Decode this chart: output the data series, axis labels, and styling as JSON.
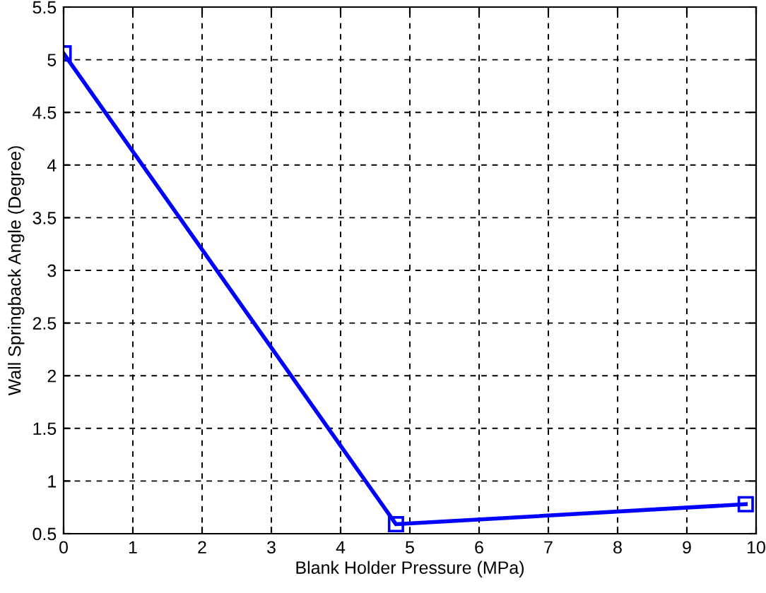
{
  "chart_data": {
    "type": "line",
    "xlabel": "Blank Holder Pressure (MPa)",
    "ylabel": "Wall Springback Angle (Degree)",
    "x": [
      0,
      4.8,
      9.85
    ],
    "series": [
      {
        "color": "#0000ff",
        "values": [
          5.06,
          0.59,
          0.78
        ]
      }
    ],
    "xlim": [
      0,
      10
    ],
    "xticks": [
      0,
      1,
      2,
      3,
      4,
      5,
      6,
      7,
      8,
      9,
      10
    ],
    "ylim": [
      0.5,
      5.5
    ],
    "yticks": [
      0.5,
      1,
      1.5,
      2,
      2.5,
      3,
      3.5,
      4,
      4.5,
      5,
      5.5
    ],
    "grid": true,
    "marker": "square",
    "line_style": "solid"
  }
}
